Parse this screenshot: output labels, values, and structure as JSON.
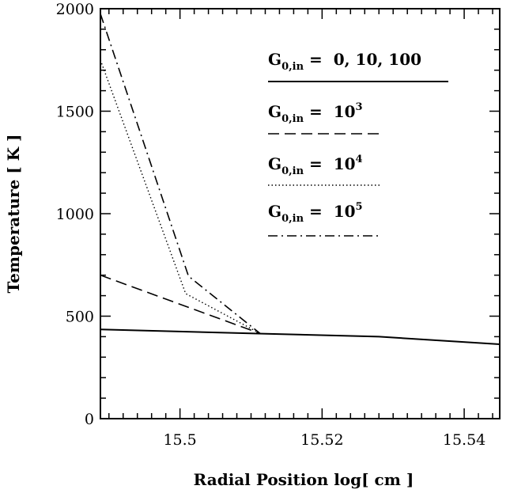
{
  "chart_data": {
    "type": "line",
    "xlabel": "Radial Position log[ cm ]",
    "ylabel": "Temperature [ K ]",
    "xlim": [
      15.4888,
      15.545
    ],
    "ylim": [
      0,
      2000
    ],
    "x_ticks": [
      15.5,
      15.52,
      15.54
    ],
    "x_tick_labels": [
      "15.5",
      "15.52",
      "15.54"
    ],
    "y_ticks": [
      0,
      500,
      1000,
      1500,
      2000
    ],
    "y_tick_labels": [
      "0",
      "500",
      "1000",
      "1500",
      "2000"
    ],
    "grid": false,
    "legend_position": "top-right",
    "series": [
      {
        "name": "G0,in = 0, 10, 100",
        "style": "solid",
        "points": [
          [
            15.4888,
            435
          ],
          [
            15.511,
            415
          ],
          [
            15.528,
            400
          ],
          [
            15.545,
            363
          ]
        ]
      },
      {
        "name": "G0,in = 10^3",
        "style": "dashed",
        "points": [
          [
            15.4888,
            700
          ],
          [
            15.5113,
            415
          ]
        ]
      },
      {
        "name": "G0,in = 10^4",
        "style": "dotted",
        "points": [
          [
            15.4888,
            1750
          ],
          [
            15.5008,
            610
          ],
          [
            15.5113,
            415
          ]
        ]
      },
      {
        "name": "G0,in = 10^5",
        "style": "dash-dot",
        "points": [
          [
            15.4888,
            1975
          ],
          [
            15.5012,
            695
          ],
          [
            15.5113,
            415
          ]
        ]
      }
    ]
  },
  "legend": [
    {
      "symbol": "G",
      "sub": "0,in",
      "eq": " = ",
      "value": "0, 10, 100",
      "sup": ""
    },
    {
      "symbol": "G",
      "sub": "0,in",
      "eq": " = ",
      "value": "10",
      "sup": "3"
    },
    {
      "symbol": "G",
      "sub": "0,in",
      "eq": " = ",
      "value": "10",
      "sup": "4"
    },
    {
      "symbol": "G",
      "sub": "0,in",
      "eq": " = ",
      "value": "10",
      "sup": "5"
    }
  ]
}
